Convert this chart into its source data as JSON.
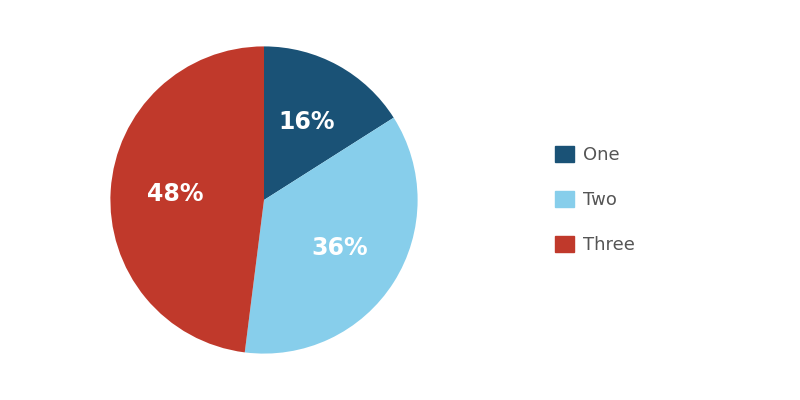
{
  "labels": [
    "One",
    "Two",
    "Three"
  ],
  "values": [
    16,
    36,
    48
  ],
  "colors": [
    "#1a5276",
    "#87ceeb",
    "#c0392b"
  ],
  "pct_labels": [
    "16%",
    "36%",
    "48%"
  ],
  "text_color": "#ffffff",
  "legend_text_color": "#555555",
  "startangle": 90,
  "font_size": 17,
  "legend_font_size": 13,
  "r_text": 0.58
}
